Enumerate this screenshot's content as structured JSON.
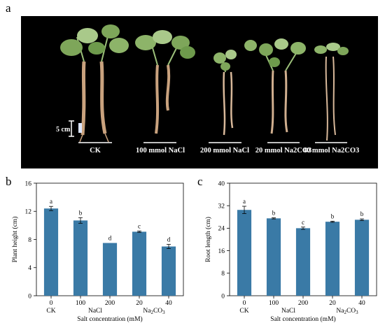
{
  "panels": {
    "a": "a",
    "b": "b",
    "c": "c"
  },
  "photo": {
    "scale_label": "5 cm",
    "group_labels": [
      "CK",
      "100 mmol NaCl",
      "200 mmol NaCl",
      "20 mmol Na2CO3",
      "40 mmol Na2CO3"
    ],
    "colors": {
      "background": "#000000",
      "leaf": "#7ea65a",
      "leaf_light": "#a9c98a",
      "root": "#c9a27e",
      "text": "#ffffff"
    }
  },
  "chart_data": [
    {
      "type": "bar",
      "panel": "b",
      "categories": [
        "0",
        "100",
        "200",
        "20",
        "40"
      ],
      "group_labels": [
        "CK",
        "NaCl",
        "Na2CO3"
      ],
      "values": [
        12.4,
        10.7,
        7.5,
        9.1,
        7.0
      ],
      "errors": [
        0.3,
        0.4,
        0.0,
        0.1,
        0.3
      ],
      "letters": [
        "a",
        "b",
        "d",
        "c",
        "d"
      ],
      "xlabel": "Salt concentration (mM)",
      "ylabel": "Plant height (cm)",
      "ylim": [
        0,
        16
      ],
      "yticks": [
        0,
        4,
        8,
        12,
        16
      ],
      "bar_color": "#3a7aa6"
    },
    {
      "type": "bar",
      "panel": "c",
      "categories": [
        "0",
        "100",
        "200",
        "20",
        "40"
      ],
      "group_labels": [
        "CK",
        "NaCl",
        "Na2CO3"
      ],
      "values": [
        30.5,
        27.5,
        24.0,
        26.3,
        27.0
      ],
      "errors": [
        1.3,
        0.2,
        0.4,
        0.2,
        0.3
      ],
      "letters": [
        "a",
        "b",
        "c",
        "b",
        "b"
      ],
      "xlabel": "Salt concentration (mM)",
      "ylabel": "Root length (cm)",
      "ylim": [
        0,
        40
      ],
      "yticks": [
        0,
        8,
        16,
        24,
        32,
        40
      ],
      "bar_color": "#3a7aa6"
    }
  ]
}
